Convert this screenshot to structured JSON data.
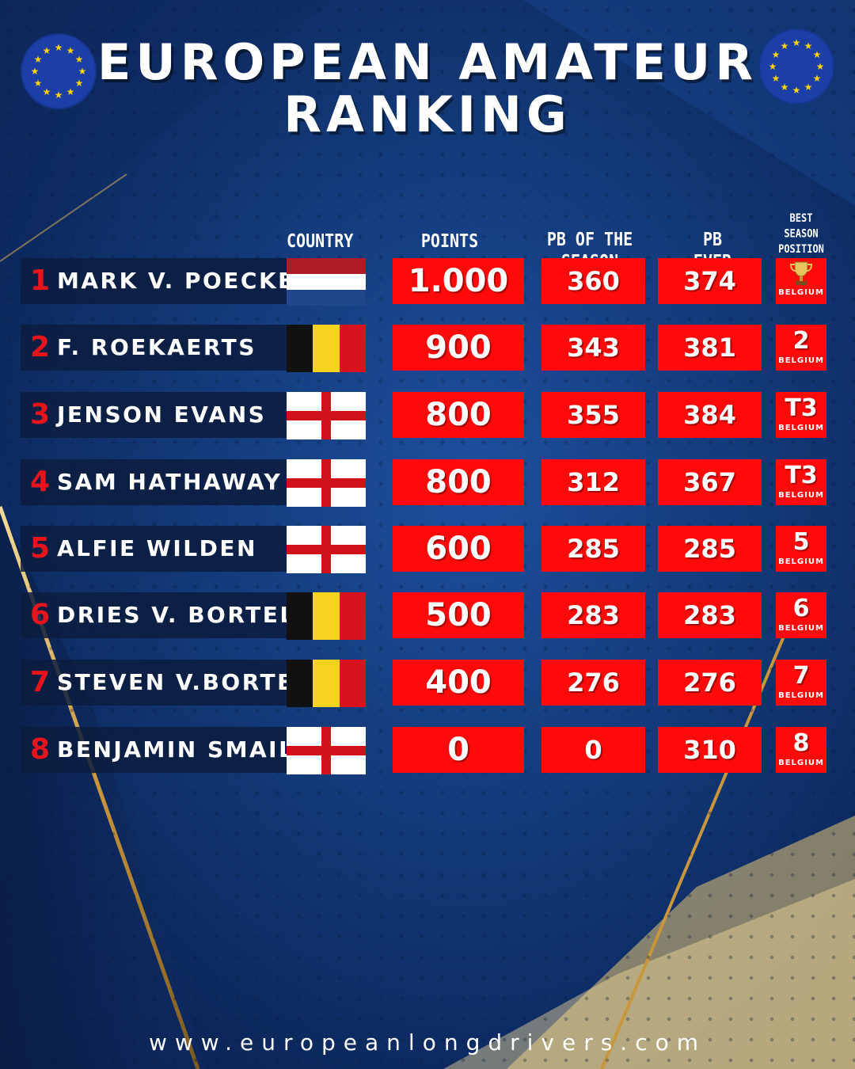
{
  "title_line1": "EUROPEAN AMATEUR",
  "title_line2": "RANKING",
  "headers": {
    "country": "COUNTRY",
    "points": "POINTS",
    "pb_season": "PB OF THE SEASON",
    "pb_ever": "PB EVER",
    "best_line1": "BEST",
    "best_line2": "SEASON",
    "best_line3": "POSITION"
  },
  "rows": [
    {
      "rank": "1",
      "name": "MARK V. POECKE",
      "country_icon": "netherlands-flag",
      "points": "1.000",
      "pb_season": "360",
      "pb_ever": "374",
      "best": "",
      "best_icon": "trophy-icon",
      "best_country": "BELGIUM"
    },
    {
      "rank": "2",
      "name": "F. ROEKAERTS",
      "country_icon": "belgium-flag",
      "points": "900",
      "pb_season": "343",
      "pb_ever": "381",
      "best": "2",
      "best_country": "BELGIUM"
    },
    {
      "rank": "3",
      "name": "JENSON EVANS",
      "country_icon": "england-flag",
      "points": "800",
      "pb_season": "355",
      "pb_ever": "384",
      "best": "T3",
      "best_country": "BELGIUM"
    },
    {
      "rank": "4",
      "name": "SAM HATHAWAY",
      "country_icon": "england-flag",
      "points": "800",
      "pb_season": "312",
      "pb_ever": "367",
      "best": "T3",
      "best_country": "BELGIUM"
    },
    {
      "rank": "5",
      "name": "ALFIE WILDEN",
      "country_icon": "england-flag",
      "points": "600",
      "pb_season": "285",
      "pb_ever": "285",
      "best": "5",
      "best_country": "BELGIUM"
    },
    {
      "rank": "6",
      "name": "DRIES V. BORTEL",
      "country_icon": "belgium-flag",
      "points": "500",
      "pb_season": "283",
      "pb_ever": "283",
      "best": "6",
      "best_country": "BELGIUM"
    },
    {
      "rank": "7",
      "name": "STEVEN V.BORTEL",
      "country_icon": "belgium-flag",
      "points": "400",
      "pb_season": "276",
      "pb_ever": "276",
      "best": "7",
      "best_country": "BELGIUM"
    },
    {
      "rank": "8",
      "name": "BENJAMIN SMAIL",
      "country_icon": "england-flag",
      "points": "0",
      "pb_season": "0",
      "pb_ever": "310",
      "best": "8",
      "best_country": "BELGIUM"
    }
  ],
  "url": "www.europeanlongdrivers.com",
  "colors": {
    "cell_red": "#ff0a0a",
    "rank_red": "#e8141c",
    "background": "#123876",
    "gold": "#d9b25a"
  }
}
